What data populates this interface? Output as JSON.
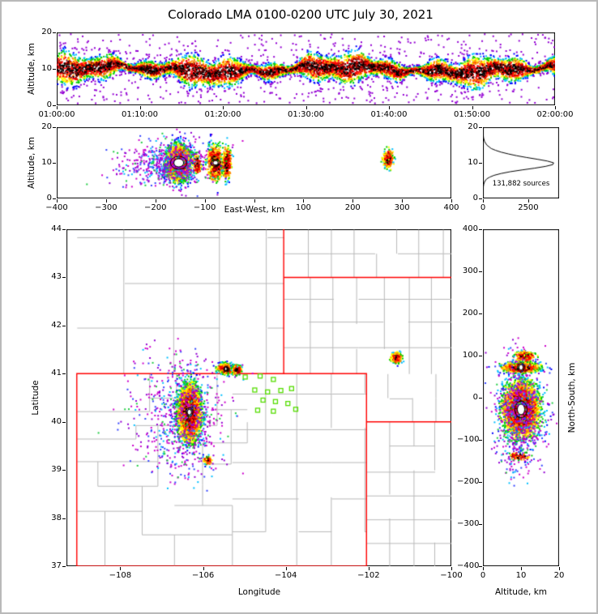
{
  "title": "Colorado LMA 0100-0200 UTC July 30, 2021",
  "colors": {
    "background": "#ffffff",
    "frame": "#000000",
    "state_border": "#ff0000",
    "county_line": "#b8b8b8",
    "station_marker": "#55dd00",
    "histogram_line": "#000000",
    "core_fill": "#ffffff",
    "core_ring": "#000000",
    "density_scale_low_to_high": [
      "#9400d3",
      "#0000ff",
      "#00bfff",
      "#00cc00",
      "#ffff00",
      "#ff8c00",
      "#ff0000",
      "#8b0000",
      "#000000"
    ],
    "sparse_palette": [
      "#cc00cc",
      "#cc00cc",
      "#cc00cc",
      "#9400d3",
      "#9400d3",
      "#3344ff",
      "#00bfff",
      "#22cc44"
    ]
  },
  "network_center": {
    "lon": -104.53,
    "lat": 40.45,
    "km_per_deg_lon": 84.8,
    "km_per_deg_lat": 111.0
  },
  "source_clusters": [
    {
      "name": "main-storm",
      "lon": -106.33,
      "lat": 40.2,
      "alt_km": 10.0,
      "sigma_lon": 0.13,
      "sigma_lat": 0.27,
      "sigma_alt": 2.2,
      "count": 4200,
      "palette": "rainbow",
      "core": true,
      "core_size": 1.0
    },
    {
      "name": "main-storm-halo",
      "lon": -106.35,
      "lat": 40.15,
      "alt_km": 10.0,
      "sigma_lon": 0.42,
      "sigma_lat": 0.55,
      "sigma_alt": 3.2,
      "count": 430,
      "palette": "sparse",
      "core": false,
      "core_size": 0
    },
    {
      "name": "north-streak",
      "lon": -105.45,
      "lat": 41.1,
      "alt_km": 10.0,
      "sigma_lon": 0.09,
      "sigma_lat": 0.05,
      "sigma_alt": 2.4,
      "count": 620,
      "palette": "rainbow",
      "core": true,
      "core_size": 0.55
    },
    {
      "name": "north-streak-east",
      "lon": -105.18,
      "lat": 41.08,
      "alt_km": 10.0,
      "sigma_lon": 0.05,
      "sigma_lat": 0.045,
      "sigma_alt": 2.2,
      "count": 330,
      "palette": "rainbow",
      "core": false,
      "core_size": 0
    },
    {
      "name": "northeast-cell",
      "lon": -101.32,
      "lat": 41.33,
      "alt_km": 11.0,
      "sigma_lon": 0.06,
      "sigma_lat": 0.05,
      "sigma_alt": 1.3,
      "count": 320,
      "palette": "rainbow",
      "core": false,
      "core_size": 0
    },
    {
      "name": "west-sparse",
      "lon": -107.15,
      "lat": 40.35,
      "alt_km": 9.0,
      "sigma_lon": 0.45,
      "sigma_lat": 0.55,
      "sigma_alt": 2.8,
      "count": 160,
      "palette": "sparse",
      "core": false,
      "core_size": 0
    },
    {
      "name": "south-sparse",
      "lon": -106.6,
      "lat": 39.45,
      "alt_km": 9.0,
      "sigma_lon": 0.45,
      "sigma_lat": 0.35,
      "sigma_alt": 2.8,
      "count": 120,
      "palette": "sparse",
      "core": false,
      "core_size": 0
    },
    {
      "name": "south-small-cell",
      "lon": -105.88,
      "lat": 39.2,
      "alt_km": 9.5,
      "sigma_lon": 0.05,
      "sigma_lat": 0.04,
      "sigma_alt": 1.5,
      "count": 90,
      "palette": "rainbow",
      "core": false,
      "core_size": 0
    }
  ],
  "chart_data": [
    {
      "id": "time-height",
      "type": "scatter",
      "xlabel": "",
      "ylabel": "Altitude, km",
      "xlim": [
        0,
        3600
      ],
      "ylim": [
        0,
        20
      ],
      "xticks": [
        {
          "v": 0,
          "label": "01:00:00"
        },
        {
          "v": 600,
          "label": "01:10:00"
        },
        {
          "v": 1200,
          "label": "01:20:00"
        },
        {
          "v": 1800,
          "label": "01:30:00"
        },
        {
          "v": 2400,
          "label": "01:40:00"
        },
        {
          "v": 3000,
          "label": "01:50:00"
        },
        {
          "v": 3600,
          "label": "02:00:00"
        }
      ],
      "yticks": [
        0,
        10,
        20
      ],
      "band": {
        "count": 9000,
        "alt_mean": 9.8,
        "alt_sigma": 1.9,
        "outlier_fraction": 0.07
      }
    },
    {
      "id": "ew-height",
      "type": "scatter",
      "xlabel": "East-West, km",
      "ylabel": "Altitude, km",
      "xlim": [
        -400,
        400
      ],
      "ylim": [
        0,
        20
      ],
      "xticks": [
        -400,
        -300,
        -200,
        -100,
        {
          "v": 0,
          "label": ""
        },
        100,
        200,
        300,
        400
      ],
      "yticks": [
        0,
        10,
        20
      ]
    },
    {
      "id": "alt-histogram",
      "type": "line",
      "xlabel": "",
      "ylabel": "",
      "xlim": [
        0,
        4200
      ],
      "ylim": [
        0,
        20
      ],
      "xticks": [
        0,
        2500
      ],
      "yticks": [
        0,
        10,
        20
      ],
      "annotation": "131,882 sources",
      "series": {
        "name": "source counts by altitude",
        "altitude_km": [
          0,
          2,
          3,
          4,
          4.5,
          5,
          5.5,
          6,
          6.5,
          7,
          7.5,
          8,
          8.5,
          9,
          9.5,
          10,
          10.5,
          11,
          11.5,
          12,
          12.5,
          13,
          13.5,
          14,
          15,
          16,
          17,
          18,
          19,
          20
        ],
        "counts": [
          0,
          0,
          15,
          45,
          80,
          130,
          210,
          380,
          620,
          1000,
          1500,
          2150,
          2850,
          3450,
          3850,
          3900,
          3550,
          3000,
          2400,
          1850,
          1400,
          1000,
          700,
          460,
          210,
          90,
          35,
          12,
          4,
          0
        ]
      }
    },
    {
      "id": "plan-map",
      "type": "scatter",
      "xlabel": "Longitude",
      "ylabel": "Latitude",
      "xlim": [
        -109.3,
        -100
      ],
      "ylim": [
        37,
        44
      ],
      "xticks": [
        -108,
        -106,
        -104,
        -102,
        -100
      ],
      "yticks": [
        37,
        38,
        39,
        40,
        41,
        42,
        43,
        44
      ]
    },
    {
      "id": "ns-height",
      "type": "scatter",
      "xlabel": "Altitude, km",
      "ylabel": "North-South, km",
      "xlim": [
        0,
        20
      ],
      "ylim": [
        -400,
        400
      ],
      "xticks": [
        0,
        10,
        20
      ],
      "yticks": [
        -400,
        -300,
        -200,
        -100,
        0,
        100,
        200,
        300,
        400
      ]
    }
  ],
  "map_layers": {
    "state_borders": [
      [
        [
          -109.05,
          37
        ],
        [
          -102.05,
          37
        ],
        [
          -102.05,
          41
        ],
        [
          -109.05,
          41
        ],
        [
          -109.05,
          37
        ]
      ],
      [
        [
          -104.05,
          41
        ],
        [
          -104.05,
          44
        ]
      ],
      [
        [
          -104.05,
          43
        ],
        [
          -100,
          43
        ]
      ],
      [
        [
          -102.05,
          40
        ],
        [
          -100,
          40
        ]
      ]
    ],
    "county_grid_regions": [
      {
        "lon0": -109.05,
        "lon1": -104.05,
        "lat0": 41,
        "lat1": 44,
        "dlon": 1.15,
        "dlat": 0.95
      },
      {
        "lon0": -104.05,
        "lon1": -100,
        "lat0": 41,
        "lat1": 43,
        "dlon": 0.6,
        "dlat": 0.52
      },
      {
        "lon0": -104.05,
        "lon1": -100,
        "lat0": 43,
        "lat1": 44,
        "dlon": 0.55,
        "dlat": 0.5
      },
      {
        "lon0": -102.05,
        "lon1": -100,
        "lat0": 40,
        "lat1": 41,
        "dlon": 0.55,
        "dlat": 0.5
      },
      {
        "lon0": -102.05,
        "lon1": -100,
        "lat0": 37,
        "lat1": 40,
        "dlon": 0.55,
        "dlat": 0.5
      },
      {
        "lon0": -105.3,
        "lon1": -102.05,
        "lat0": 37,
        "lat1": 41,
        "dlon": 0.8,
        "dlat": 0.72
      }
    ],
    "county_segments": [
      [
        -109.05,
        40.22,
        -107.3,
        40.22
      ],
      [
        -107.3,
        40.22,
        -107.3,
        41.0
      ],
      [
        -107.3,
        40.5,
        -106.65,
        40.5
      ],
      [
        -106.65,
        40.0,
        -106.65,
        41.0
      ],
      [
        -106.65,
        40.35,
        -106.18,
        40.35
      ],
      [
        -106.18,
        40.35,
        -106.18,
        41.0
      ],
      [
        -106.18,
        39.93,
        -105.67,
        39.93
      ],
      [
        -105.67,
        39.93,
        -105.67,
        40.98
      ],
      [
        -105.67,
        40.26,
        -104.94,
        40.26
      ],
      [
        -105.33,
        39.13,
        -105.33,
        40.26
      ],
      [
        -106.02,
        39.57,
        -105.33,
        39.57
      ],
      [
        -106.02,
        38.7,
        -106.02,
        39.57
      ],
      [
        -106.02,
        39.13,
        -105.33,
        39.13
      ],
      [
        -104.94,
        39.57,
        -104.94,
        40.0
      ],
      [
        -105.33,
        39.57,
        -104.94,
        39.57
      ],
      [
        -109.05,
        39.65,
        -107.63,
        39.65
      ],
      [
        -107.63,
        39.65,
        -107.63,
        39.93
      ],
      [
        -107.63,
        39.93,
        -106.65,
        39.93
      ],
      [
        -109.05,
        39.18,
        -107.1,
        39.18
      ],
      [
        -107.1,
        38.67,
        -107.1,
        39.93
      ],
      [
        -108.55,
        38.67,
        -107.1,
        38.67
      ],
      [
        -108.55,
        38.67,
        -108.55,
        39.18
      ],
      [
        -109.05,
        38.15,
        -107.48,
        38.15
      ],
      [
        -107.48,
        37.66,
        -107.48,
        38.67
      ],
      [
        -107.48,
        37.66,
        -105.3,
        37.66
      ],
      [
        -106.7,
        37.0,
        -106.7,
        37.66
      ],
      [
        -105.3,
        37.0,
        -105.3,
        38.27
      ],
      [
        -106.7,
        38.27,
        -105.3,
        38.27
      ],
      [
        -106.02,
        38.27,
        -106.02,
        38.7
      ],
      [
        -108.38,
        37.0,
        -108.38,
        38.15
      ]
    ],
    "stations": [
      [
        -104.98,
        40.93
      ],
      [
        -104.62,
        40.95
      ],
      [
        -104.3,
        40.88
      ],
      [
        -104.75,
        40.66
      ],
      [
        -104.44,
        40.62
      ],
      [
        -104.12,
        40.65
      ],
      [
        -103.86,
        40.69
      ],
      [
        -104.55,
        40.45
      ],
      [
        -104.25,
        40.42
      ],
      [
        -103.95,
        40.38
      ],
      [
        -104.68,
        40.24
      ],
      [
        -104.3,
        40.22
      ],
      [
        -103.76,
        40.26
      ]
    ]
  }
}
